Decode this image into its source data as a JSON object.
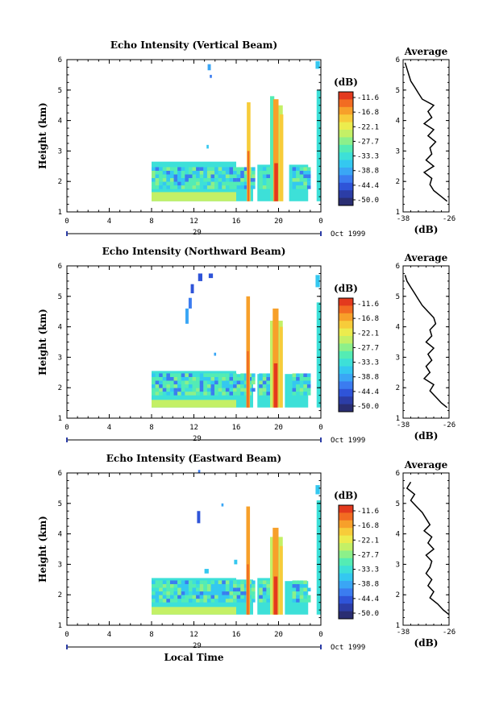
{
  "chart_data": [
    {
      "type": "heatmap",
      "title": "Echo Intensity (Vertical Beam)",
      "ylabel": "Height (km)",
      "xlim": [
        0,
        24
      ],
      "ylim": [
        1,
        6
      ],
      "x_ticks": [
        "0",
        "4",
        "8",
        "12",
        "16",
        "20",
        "0"
      ],
      "y_ticks": [
        "1",
        "2",
        "3",
        "4",
        "5",
        "6"
      ],
      "date_day": "29",
      "date_label": "Oct 1999",
      "colorbar": {
        "unit": "(dB)",
        "labels": [
          "-11.6",
          "-16.8",
          "-22.1",
          "-27.7",
          "-33.3",
          "-38.8",
          "-44.4",
          "-50.0"
        ]
      },
      "blocks": [
        {
          "x0": 8.0,
          "x1": 16.0,
          "y0": 1.35,
          "y1": 2.65,
          "v": -33
        },
        {
          "x0": 8.0,
          "x1": 16.0,
          "y0": 1.35,
          "y1": 1.65,
          "v": -24
        },
        {
          "x0": 16.0,
          "x1": 17.6,
          "y0": 1.35,
          "y1": 2.45,
          "v": -33
        },
        {
          "x0": 18.0,
          "x1": 19.2,
          "y0": 1.35,
          "y1": 2.55,
          "v": -33
        },
        {
          "x0": 21.0,
          "x1": 22.8,
          "y0": 1.35,
          "y1": 2.55,
          "v": -33
        },
        {
          "x0": 23.6,
          "x1": 24.0,
          "y0": 1.35,
          "y1": 5.0,
          "v": -33
        },
        {
          "x0": 13.3,
          "x1": 13.6,
          "y0": 5.65,
          "y1": 5.85,
          "v": -40
        },
        {
          "x0": 13.5,
          "x1": 13.7,
          "y0": 5.4,
          "y1": 5.5,
          "v": -42
        },
        {
          "x0": 13.2,
          "x1": 13.4,
          "y0": 3.08,
          "y1": 3.2,
          "v": -36
        },
        {
          "x0": 19.4,
          "x1": 20.4,
          "y0": 1.35,
          "y1": 4.5,
          "v": -26
        },
        {
          "x0": 19.2,
          "x1": 19.6,
          "y0": 1.35,
          "y1": 4.8,
          "v": -30
        },
        {
          "x0": 23.5,
          "x1": 23.9,
          "y0": 5.7,
          "y1": 5.95,
          "v": -36
        }
      ],
      "streaks": [
        {
          "x": 17.0,
          "w": 0.35,
          "y0": 1.35,
          "y1": 4.6,
          "v": -20
        },
        {
          "x": 17.05,
          "w": 0.2,
          "y0": 1.35,
          "y1": 3.0,
          "v": -13
        },
        {
          "x": 19.5,
          "w": 0.5,
          "y0": 1.35,
          "y1": 4.7,
          "v": -18
        },
        {
          "x": 19.6,
          "w": 0.35,
          "y0": 1.35,
          "y1": 2.6,
          "v": -12
        },
        {
          "x": 20.1,
          "w": 0.35,
          "y0": 1.35,
          "y1": 4.2,
          "v": -20
        }
      ],
      "profile": {
        "xlim": [
          -38,
          -26
        ],
        "x_ticks": [
          "-38",
          "-26"
        ],
        "xlabel": "(dB)",
        "title": "Average",
        "h": [
          1.35,
          1.5,
          1.7,
          1.9,
          2.1,
          2.3,
          2.5,
          2.7,
          2.9,
          3.1,
          3.3,
          3.5,
          3.7,
          3.9,
          4.1,
          4.3,
          4.5,
          4.7,
          4.9,
          5.1,
          5.3,
          5.5,
          5.7,
          5.9
        ],
        "v": [
          -26.5,
          -28,
          -30,
          -31,
          -30.5,
          -32.5,
          -30,
          -32,
          -30.5,
          -31,
          -29.5,
          -31.5,
          -30,
          -32.5,
          -30.5,
          -31.5,
          -30,
          -33,
          -34,
          -35,
          -36,
          -36.5,
          -37,
          -37.5
        ]
      }
    },
    {
      "type": "heatmap",
      "title": "Echo Intensity (Northward Beam)",
      "ylabel": "Height (km)",
      "xlim": [
        0,
        24
      ],
      "ylim": [
        1,
        6
      ],
      "x_ticks": [
        "0",
        "4",
        "8",
        "12",
        "16",
        "20",
        "0"
      ],
      "y_ticks": [
        "1",
        "2",
        "3",
        "4",
        "5",
        "6"
      ],
      "date_day": "29",
      "date_label": "Oct 1999",
      "colorbar": {
        "unit": "(dB)",
        "labels": [
          "-11.6",
          "-16.8",
          "-22.1",
          "-27.7",
          "-33.3",
          "-38.8",
          "-44.4",
          "-50.0"
        ]
      },
      "blocks": [
        {
          "x0": 8.0,
          "x1": 16.0,
          "y0": 1.35,
          "y1": 2.55,
          "v": -33
        },
        {
          "x0": 8.0,
          "x1": 16.0,
          "y0": 1.35,
          "y1": 1.6,
          "v": -24
        },
        {
          "x0": 16.0,
          "x1": 17.6,
          "y0": 1.35,
          "y1": 2.45,
          "v": -33
        },
        {
          "x0": 18.0,
          "x1": 19.2,
          "y0": 1.35,
          "y1": 2.45,
          "v": -33
        },
        {
          "x0": 20.6,
          "x1": 22.8,
          "y0": 1.35,
          "y1": 2.45,
          "v": -33
        },
        {
          "x0": 23.6,
          "x1": 24.0,
          "y0": 1.35,
          "y1": 4.8,
          "v": -33
        },
        {
          "x0": 11.5,
          "x1": 11.8,
          "y0": 4.6,
          "y1": 4.95,
          "v": -42
        },
        {
          "x0": 11.7,
          "x1": 12.0,
          "y0": 5.1,
          "y1": 5.4,
          "v": -44
        },
        {
          "x0": 12.4,
          "x1": 12.8,
          "y0": 5.5,
          "y1": 5.75,
          "v": -44
        },
        {
          "x0": 13.4,
          "x1": 13.8,
          "y0": 5.6,
          "y1": 5.75,
          "v": -44
        },
        {
          "x0": 11.2,
          "x1": 11.5,
          "y0": 4.1,
          "y1": 4.6,
          "v": -40
        },
        {
          "x0": 13.9,
          "x1": 14.1,
          "y0": 3.05,
          "y1": 3.15,
          "v": -38
        },
        {
          "x0": 19.2,
          "x1": 20.4,
          "y0": 1.35,
          "y1": 4.2,
          "v": -24
        },
        {
          "x0": 23.5,
          "x1": 23.9,
          "y0": 5.3,
          "y1": 5.7,
          "v": -36
        }
      ],
      "streaks": [
        {
          "x": 16.95,
          "w": 0.35,
          "y0": 1.35,
          "y1": 5.0,
          "v": -18
        },
        {
          "x": 17.0,
          "w": 0.2,
          "y0": 1.35,
          "y1": 3.2,
          "v": -13
        },
        {
          "x": 19.45,
          "w": 0.55,
          "y0": 1.35,
          "y1": 4.6,
          "v": -18
        },
        {
          "x": 19.55,
          "w": 0.35,
          "y0": 1.35,
          "y1": 2.8,
          "v": -12
        },
        {
          "x": 20.1,
          "w": 0.3,
          "y0": 1.35,
          "y1": 4.0,
          "v": -20
        }
      ],
      "profile": {
        "xlim": [
          -38,
          -26
        ],
        "x_ticks": [
          "-38",
          "-26"
        ],
        "xlabel": "(dB)",
        "title": "Average",
        "h": [
          1.35,
          1.5,
          1.7,
          1.9,
          2.1,
          2.3,
          2.5,
          2.7,
          2.9,
          3.1,
          3.3,
          3.5,
          3.7,
          3.9,
          4.1,
          4.3,
          4.5,
          4.7,
          4.9,
          5.1,
          5.3,
          5.5,
          5.7
        ],
        "v": [
          -26.5,
          -28,
          -29.5,
          -31,
          -30,
          -32.5,
          -31,
          -32,
          -30.5,
          -31.5,
          -30,
          -32,
          -30.5,
          -31,
          -29.5,
          -30,
          -31.5,
          -33,
          -34,
          -35,
          -36,
          -37,
          -37.5
        ]
      }
    },
    {
      "type": "heatmap",
      "title": "Echo Intensity (Eastward Beam)",
      "ylabel": "Height (km)",
      "xlabel": "Local Time",
      "xlim": [
        0,
        24
      ],
      "ylim": [
        1,
        6
      ],
      "x_ticks": [
        "0",
        "4",
        "8",
        "12",
        "16",
        "20",
        "0"
      ],
      "y_ticks": [
        "1",
        "2",
        "3",
        "4",
        "5",
        "6"
      ],
      "date_day": "29",
      "date_label": "Oct 1999",
      "colorbar": {
        "unit": "(dB)",
        "labels": [
          "-11.6",
          "-16.8",
          "-22.1",
          "-27.7",
          "-33.3",
          "-38.8",
          "-44.4",
          "-50.0"
        ]
      },
      "blocks": [
        {
          "x0": 8.0,
          "x1": 16.0,
          "y0": 1.35,
          "y1": 2.55,
          "v": -33
        },
        {
          "x0": 8.0,
          "x1": 16.0,
          "y0": 1.35,
          "y1": 1.6,
          "v": -24
        },
        {
          "x0": 16.0,
          "x1": 17.6,
          "y0": 1.35,
          "y1": 2.5,
          "v": -33
        },
        {
          "x0": 18.0,
          "x1": 19.2,
          "y0": 1.35,
          "y1": 2.55,
          "v": -33
        },
        {
          "x0": 20.6,
          "x1": 22.8,
          "y0": 1.35,
          "y1": 2.45,
          "v": -33
        },
        {
          "x0": 23.6,
          "x1": 24.0,
          "y0": 1.35,
          "y1": 5.1,
          "v": -33
        },
        {
          "x0": 12.3,
          "x1": 12.6,
          "y0": 4.35,
          "y1": 4.75,
          "v": -44
        },
        {
          "x0": 12.4,
          "x1": 12.6,
          "y0": 6.0,
          "y1": 6.1,
          "v": -42
        },
        {
          "x0": 14.6,
          "x1": 14.8,
          "y0": 4.9,
          "y1": 5.0,
          "v": -40
        },
        {
          "x0": 13.0,
          "x1": 13.4,
          "y0": 2.7,
          "y1": 2.85,
          "v": -36
        },
        {
          "x0": 15.8,
          "x1": 16.1,
          "y0": 3.0,
          "y1": 3.15,
          "v": -36
        },
        {
          "x0": 19.2,
          "x1": 20.4,
          "y0": 1.35,
          "y1": 3.9,
          "v": -24
        },
        {
          "x0": 23.5,
          "x1": 23.9,
          "y0": 5.3,
          "y1": 5.6,
          "v": -36
        }
      ],
      "streaks": [
        {
          "x": 16.95,
          "w": 0.35,
          "y0": 1.35,
          "y1": 4.9,
          "v": -18
        },
        {
          "x": 17.0,
          "w": 0.2,
          "y0": 1.35,
          "y1": 3.0,
          "v": -13
        },
        {
          "x": 19.45,
          "w": 0.55,
          "y0": 1.35,
          "y1": 4.2,
          "v": -18
        },
        {
          "x": 19.55,
          "w": 0.35,
          "y0": 1.35,
          "y1": 2.6,
          "v": -12
        },
        {
          "x": 20.1,
          "w": 0.3,
          "y0": 1.35,
          "y1": 3.6,
          "v": -20
        }
      ],
      "profile": {
        "xlim": [
          -38,
          -26
        ],
        "x_ticks": [
          "-38",
          "-26"
        ],
        "xlabel": "(dB)",
        "title": "Average",
        "h": [
          1.35,
          1.5,
          1.7,
          1.9,
          2.1,
          2.3,
          2.5,
          2.7,
          2.9,
          3.1,
          3.3,
          3.5,
          3.7,
          3.9,
          4.1,
          4.3,
          4.5,
          4.7,
          4.9,
          5.1,
          5.3,
          5.5,
          5.7
        ],
        "v": [
          -26,
          -27.5,
          -29,
          -31,
          -30,
          -31.5,
          -30.5,
          -32,
          -31,
          -30.5,
          -32,
          -30,
          -31.5,
          -30.5,
          -32.5,
          -31,
          -32,
          -33,
          -34.5,
          -36,
          -35,
          -37,
          -36
        ]
      }
    }
  ],
  "palette": [
    "#2a2e72",
    "#2c3da6",
    "#2f54d8",
    "#3b7cf0",
    "#3aa6f5",
    "#34c8f0",
    "#3de0d8",
    "#54ecb4",
    "#8cf08a",
    "#c4f066",
    "#ecec4e",
    "#f7cc3a",
    "#f7a02a",
    "#f26c22",
    "#e33a1e"
  ]
}
